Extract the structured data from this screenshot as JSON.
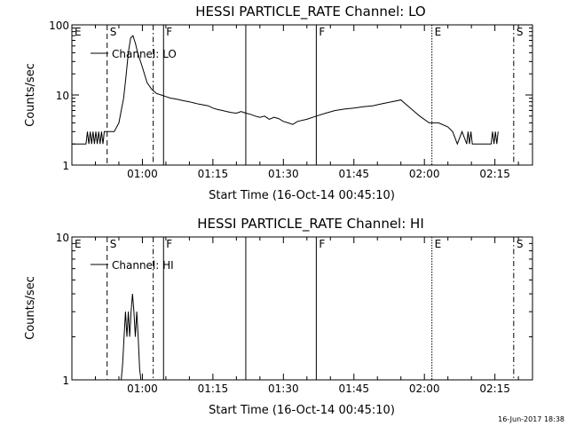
{
  "footer_date": "16-Jun-2017 18:38",
  "chart_data": [
    {
      "type": "line",
      "title": "HESSI PARTICLE_RATE Channel: LO",
      "xlabel": "Start Time (16-Oct-14 00:45:10)",
      "ylabel": "Counts/sec",
      "yscale": "log",
      "ylim": [
        1,
        100
      ],
      "yticks": [
        1,
        10,
        100
      ],
      "ytick_labels": [
        "1",
        "10",
        "100"
      ],
      "xlim_minutes": [
        0,
        98
      ],
      "xticks_minutes": [
        15,
        30,
        45,
        60,
        75,
        90
      ],
      "xtick_labels": [
        "01:00",
        "01:15",
        "01:30",
        "01:45",
        "02:00",
        "02:15"
      ],
      "legend": "Channel: LO",
      "legend_placement": "top-left",
      "series": [
        {
          "name": "Channel: LO",
          "x_minutes": [
            0,
            3,
            3.3,
            3.6,
            3.9,
            4.2,
            4.5,
            4.8,
            5.1,
            5.4,
            5.7,
            6,
            6.3,
            6.6,
            6.9,
            7.2,
            7.5,
            7.8,
            8.1,
            8.4,
            8.7,
            9,
            10,
            10.5,
            11,
            11.5,
            12,
            12.5,
            13,
            13.5,
            14,
            15,
            16,
            17,
            18,
            19,
            20,
            21,
            22,
            23,
            24,
            25,
            26,
            27,
            28,
            29,
            30,
            31,
            32,
            33,
            34,
            35,
            36,
            37,
            38,
            39,
            40,
            41,
            42,
            43,
            44,
            45,
            46,
            47,
            48,
            50,
            52,
            54,
            56,
            58,
            60,
            62,
            64,
            66,
            68,
            70,
            72,
            74,
            76,
            78,
            80,
            81,
            82,
            83,
            84,
            84.3,
            84.6,
            84.9,
            85.2,
            85.5,
            85.8,
            86.1,
            86.4,
            86.7,
            87,
            87.3,
            87.6,
            88,
            88.3,
            88.6,
            88.9,
            89.2,
            89.5,
            89.8,
            90.1,
            90.4,
            90.7
          ],
          "y": [
            2,
            2,
            3,
            2,
            3,
            2,
            3,
            2,
            3,
            2,
            3,
            2,
            3,
            2,
            3,
            3,
            3,
            3,
            3,
            3,
            3,
            3,
            4,
            6,
            9,
            18,
            40,
            65,
            70,
            55,
            40,
            25,
            15,
            12,
            10.5,
            10,
            9.5,
            9,
            8.8,
            8.5,
            8.2,
            8,
            7.7,
            7.4,
            7.2,
            7,
            6.5,
            6.2,
            6,
            5.8,
            5.6,
            5.5,
            5.8,
            5.5,
            5.3,
            5,
            4.8,
            5,
            4.5,
            4.8,
            4.6,
            4.2,
            4,
            3.8,
            4.2,
            4.5,
            5,
            5.5,
            6,
            6.3,
            6.5,
            6.8,
            7,
            7.5,
            8,
            8.5,
            6.5,
            5,
            4,
            4,
            3.5,
            3,
            2,
            3,
            2,
            3,
            2,
            3,
            2,
            2,
            2,
            2,
            2,
            2,
            2,
            2,
            2,
            2,
            2,
            2,
            2,
            2,
            3,
            2,
            3,
            2,
            3
          ]
        }
      ],
      "markers": [
        {
          "label": "E",
          "minute": 0,
          "style": "none"
        },
        {
          "label": "S",
          "minute": 7.5,
          "style": "dashed"
        },
        {
          "label": "",
          "minute": 17.3,
          "style": "dashdot"
        },
        {
          "label": "F",
          "minute": 19.5,
          "style": "solid"
        },
        {
          "label": "",
          "minute": 37,
          "style": "solid"
        },
        {
          "label": "F",
          "minute": 52,
          "style": "solid"
        },
        {
          "label": "E",
          "minute": 76.6,
          "style": "dotted"
        },
        {
          "label": "S",
          "minute": 94,
          "style": "dashdot"
        }
      ]
    },
    {
      "type": "line",
      "title": "HESSI PARTICLE_RATE Channel: HI",
      "xlabel": "Start Time (16-Oct-14 00:45:10)",
      "ylabel": "Counts/sec",
      "yscale": "log",
      "ylim": [
        1,
        10
      ],
      "yticks": [
        1,
        10
      ],
      "ytick_labels": [
        "1",
        "10"
      ],
      "xlim_minutes": [
        0,
        98
      ],
      "xticks_minutes": [
        15,
        30,
        45,
        60,
        75,
        90
      ],
      "xtick_labels": [
        "01:00",
        "01:15",
        "01:30",
        "01:45",
        "02:00",
        "02:15"
      ],
      "legend": "Channel: HI",
      "legend_placement": "top-left",
      "series": [
        {
          "name": "Channel: HI",
          "x_minutes": [
            10.5,
            10.8,
            11.1,
            11.4,
            11.7,
            12,
            12.3,
            12.6,
            12.9,
            13.2,
            13.5,
            13.8,
            14.1,
            14.4,
            14.7
          ],
          "y": [
            1,
            1.3,
            2.0,
            3.0,
            2.0,
            3.0,
            2.0,
            3.0,
            4.0,
            3.0,
            2.0,
            3.0,
            2.0,
            1.2,
            1
          ]
        }
      ],
      "markers": [
        {
          "label": "E",
          "minute": 0,
          "style": "none"
        },
        {
          "label": "S",
          "minute": 7.5,
          "style": "dashed"
        },
        {
          "label": "",
          "minute": 17.3,
          "style": "dashdot"
        },
        {
          "label": "F",
          "minute": 19.5,
          "style": "solid"
        },
        {
          "label": "",
          "minute": 37,
          "style": "solid"
        },
        {
          "label": "F",
          "minute": 52,
          "style": "solid"
        },
        {
          "label": "E",
          "minute": 76.6,
          "style": "dotted"
        },
        {
          "label": "S",
          "minute": 94,
          "style": "dashdot"
        }
      ]
    }
  ]
}
